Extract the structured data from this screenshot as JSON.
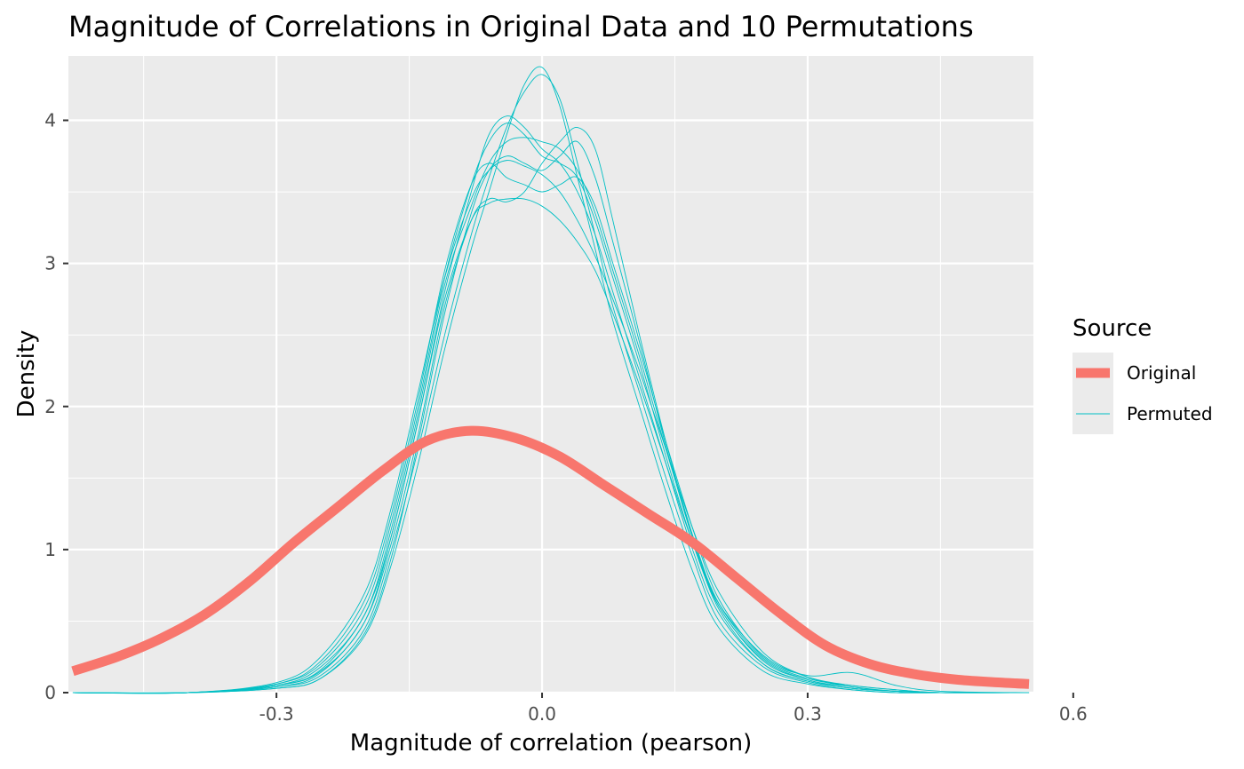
{
  "chart_data": {
    "type": "line",
    "title": "Magnitude of Correlations in Original Data and 10 Permutations",
    "xlabel": "Magnitude of correlation (pearson)",
    "ylabel": "Density",
    "xlim": [
      -0.535,
      0.555
    ],
    "ylim": [
      0,
      4.45
    ],
    "x_ticks": [
      -0.3,
      0.0,
      0.3,
      0.6
    ],
    "x_tick_labels": [
      "-0.3",
      "0.0",
      "0.3",
      "0.6"
    ],
    "y_ticks": [
      0,
      1,
      2,
      3,
      4
    ],
    "y_tick_labels": [
      "0",
      "1",
      "2",
      "3",
      "4"
    ],
    "grid": true,
    "legend": {
      "title": "Source",
      "placement": "right",
      "entries": [
        {
          "label": "Original",
          "color": "#F8766D"
        },
        {
          "label": "Permuted",
          "color": "#00BFC4"
        }
      ]
    },
    "series": [
      {
        "name": "Original",
        "color": "#F8766D",
        "x": [
          -0.53,
          -0.48,
          -0.43,
          -0.38,
          -0.33,
          -0.28,
          -0.23,
          -0.18,
          -0.13,
          -0.08,
          -0.03,
          0.02,
          0.07,
          0.12,
          0.17,
          0.22,
          0.27,
          0.32,
          0.37,
          0.42,
          0.47,
          0.52,
          0.55
        ],
        "y": [
          0.15,
          0.25,
          0.38,
          0.55,
          0.78,
          1.05,
          1.3,
          1.55,
          1.76,
          1.83,
          1.78,
          1.65,
          1.45,
          1.25,
          1.05,
          0.8,
          0.55,
          0.33,
          0.2,
          0.13,
          0.09,
          0.07,
          0.06
        ]
      },
      {
        "name": "Permuted",
        "color": "#00BFC4",
        "x": [
          -0.53,
          -0.4,
          -0.3,
          -0.25,
          -0.2,
          -0.17,
          -0.14,
          -0.11,
          -0.08,
          -0.06,
          -0.04,
          -0.02,
          0.0,
          0.02,
          0.04,
          0.06,
          0.08,
          0.11,
          0.14,
          0.17,
          0.2,
          0.25,
          0.3,
          0.35,
          0.4,
          0.45,
          0.55
        ],
        "y": [
          0,
          0,
          0.03,
          0.1,
          0.4,
          0.9,
          1.6,
          2.4,
          3.1,
          3.5,
          3.9,
          4.25,
          4.37,
          4.1,
          3.6,
          3.1,
          2.6,
          2.0,
          1.4,
          0.85,
          0.45,
          0.15,
          0.06,
          0.02,
          0,
          0,
          0
        ]
      },
      {
        "name": "Permuted",
        "color": "#00BFC4",
        "x": [
          -0.53,
          -0.4,
          -0.3,
          -0.25,
          -0.2,
          -0.17,
          -0.14,
          -0.11,
          -0.08,
          -0.06,
          -0.04,
          -0.02,
          0.0,
          0.02,
          0.04,
          0.06,
          0.08,
          0.11,
          0.14,
          0.17,
          0.2,
          0.25,
          0.3,
          0.35,
          0.4,
          0.45,
          0.55
        ],
        "y": [
          0,
          0,
          0.04,
          0.12,
          0.45,
          1.0,
          1.7,
          2.5,
          3.2,
          3.6,
          3.95,
          4.2,
          4.32,
          4.15,
          3.7,
          3.2,
          2.7,
          2.1,
          1.5,
          0.95,
          0.5,
          0.18,
          0.07,
          0.02,
          0,
          0,
          0
        ]
      },
      {
        "name": "Permuted",
        "color": "#00BFC4",
        "x": [
          -0.53,
          -0.4,
          -0.3,
          -0.25,
          -0.2,
          -0.17,
          -0.14,
          -0.11,
          -0.08,
          -0.06,
          -0.04,
          -0.02,
          0.0,
          0.02,
          0.04,
          0.06,
          0.08,
          0.11,
          0.14,
          0.17,
          0.2,
          0.25,
          0.3,
          0.35,
          0.4,
          0.45,
          0.55
        ],
        "y": [
          0,
          0,
          0.05,
          0.15,
          0.5,
          1.1,
          1.9,
          2.8,
          3.5,
          3.9,
          4.03,
          3.95,
          3.8,
          3.7,
          3.5,
          3.2,
          2.8,
          2.2,
          1.6,
          1.0,
          0.55,
          0.2,
          0.08,
          0.03,
          0.01,
          0,
          0
        ]
      },
      {
        "name": "Permuted",
        "color": "#00BFC4",
        "x": [
          -0.53,
          -0.4,
          -0.3,
          -0.25,
          -0.2,
          -0.17,
          -0.14,
          -0.11,
          -0.08,
          -0.06,
          -0.04,
          -0.02,
          0.0,
          0.02,
          0.04,
          0.06,
          0.08,
          0.11,
          0.14,
          0.17,
          0.2,
          0.25,
          0.3,
          0.35,
          0.4,
          0.45,
          0.55
        ],
        "y": [
          0,
          0,
          0.06,
          0.2,
          0.6,
          1.2,
          2.0,
          2.9,
          3.55,
          3.85,
          3.98,
          3.9,
          3.75,
          3.7,
          3.6,
          3.3,
          2.9,
          2.3,
          1.65,
          1.05,
          0.6,
          0.22,
          0.09,
          0.04,
          0.01,
          0,
          0
        ]
      },
      {
        "name": "Permuted",
        "color": "#00BFC4",
        "x": [
          -0.53,
          -0.4,
          -0.3,
          -0.25,
          -0.2,
          -0.17,
          -0.14,
          -0.11,
          -0.08,
          -0.06,
          -0.04,
          -0.02,
          0.0,
          0.02,
          0.04,
          0.06,
          0.08,
          0.11,
          0.14,
          0.17,
          0.2,
          0.25,
          0.3,
          0.35,
          0.4,
          0.45,
          0.55
        ],
        "y": [
          0,
          0,
          0.05,
          0.18,
          0.55,
          1.15,
          1.95,
          2.85,
          3.4,
          3.7,
          3.85,
          3.88,
          3.85,
          3.8,
          3.65,
          3.35,
          2.95,
          2.35,
          1.7,
          1.1,
          0.62,
          0.24,
          0.1,
          0.05,
          0.02,
          0,
          0
        ]
      },
      {
        "name": "Permuted",
        "color": "#00BFC4",
        "x": [
          -0.53,
          -0.4,
          -0.3,
          -0.25,
          -0.2,
          -0.17,
          -0.14,
          -0.11,
          -0.08,
          -0.06,
          -0.04,
          -0.02,
          0.0,
          0.02,
          0.04,
          0.06,
          0.08,
          0.11,
          0.14,
          0.17,
          0.2,
          0.25,
          0.3,
          0.35,
          0.4,
          0.45,
          0.55
        ],
        "y": [
          0,
          0,
          0.06,
          0.22,
          0.65,
          1.25,
          2.05,
          2.95,
          3.55,
          3.7,
          3.6,
          3.55,
          3.5,
          3.55,
          3.6,
          3.4,
          3.0,
          2.4,
          1.75,
          1.15,
          0.65,
          0.25,
          0.12,
          0.14,
          0.05,
          0.01,
          0
        ]
      },
      {
        "name": "Permuted",
        "color": "#00BFC4",
        "x": [
          -0.53,
          -0.4,
          -0.3,
          -0.25,
          -0.2,
          -0.17,
          -0.14,
          -0.11,
          -0.08,
          -0.06,
          -0.04,
          -0.02,
          0.0,
          0.02,
          0.04,
          0.06,
          0.08,
          0.11,
          0.14,
          0.17,
          0.2,
          0.25,
          0.3,
          0.35,
          0.4,
          0.45,
          0.55
        ],
        "y": [
          0,
          0,
          0.04,
          0.14,
          0.5,
          1.05,
          1.8,
          2.7,
          3.3,
          3.45,
          3.43,
          3.5,
          3.7,
          3.85,
          3.95,
          3.8,
          3.3,
          2.5,
          1.75,
          1.1,
          0.6,
          0.23,
          0.09,
          0.03,
          0.01,
          0,
          0
        ]
      },
      {
        "name": "Permuted",
        "color": "#00BFC4",
        "x": [
          -0.53,
          -0.4,
          -0.3,
          -0.25,
          -0.2,
          -0.17,
          -0.14,
          -0.11,
          -0.08,
          -0.06,
          -0.04,
          -0.02,
          0.0,
          0.02,
          0.04,
          0.06,
          0.08,
          0.11,
          0.14,
          0.17,
          0.2,
          0.25,
          0.3,
          0.35,
          0.4,
          0.45,
          0.55
        ],
        "y": [
          0,
          0,
          0.05,
          0.16,
          0.55,
          1.1,
          1.9,
          2.75,
          3.3,
          3.42,
          3.45,
          3.45,
          3.4,
          3.3,
          3.15,
          2.95,
          2.65,
          2.15,
          1.6,
          1.05,
          0.62,
          0.26,
          0.11,
          0.05,
          0.02,
          0,
          0
        ]
      },
      {
        "name": "Permuted",
        "color": "#00BFC4",
        "x": [
          -0.53,
          -0.4,
          -0.3,
          -0.25,
          -0.2,
          -0.17,
          -0.14,
          -0.11,
          -0.08,
          -0.06,
          -0.04,
          -0.02,
          0.0,
          0.02,
          0.04,
          0.06,
          0.08,
          0.11,
          0.14,
          0.17,
          0.2,
          0.25,
          0.3,
          0.35,
          0.4,
          0.45,
          0.55
        ],
        "y": [
          0,
          0,
          0.07,
          0.25,
          0.7,
          1.3,
          2.1,
          2.9,
          3.45,
          3.65,
          3.72,
          3.68,
          3.62,
          3.5,
          3.3,
          3.05,
          2.75,
          2.25,
          1.7,
          1.15,
          0.7,
          0.28,
          0.11,
          0.04,
          0.01,
          0,
          0
        ]
      },
      {
        "name": "Permuted",
        "color": "#00BFC4",
        "x": [
          -0.53,
          -0.4,
          -0.3,
          -0.25,
          -0.2,
          -0.17,
          -0.14,
          -0.11,
          -0.08,
          -0.06,
          -0.04,
          -0.02,
          0.0,
          0.02,
          0.04,
          0.06,
          0.08,
          0.11,
          0.14,
          0.17,
          0.2,
          0.25,
          0.3,
          0.35,
          0.4,
          0.45,
          0.55
        ],
        "y": [
          0,
          0,
          0.03,
          0.1,
          0.42,
          0.95,
          1.75,
          2.65,
          3.35,
          3.65,
          3.75,
          3.7,
          3.65,
          3.75,
          3.85,
          3.6,
          3.15,
          2.45,
          1.72,
          1.08,
          0.58,
          0.2,
          0.08,
          0.03,
          0.01,
          0,
          0
        ]
      }
    ]
  }
}
